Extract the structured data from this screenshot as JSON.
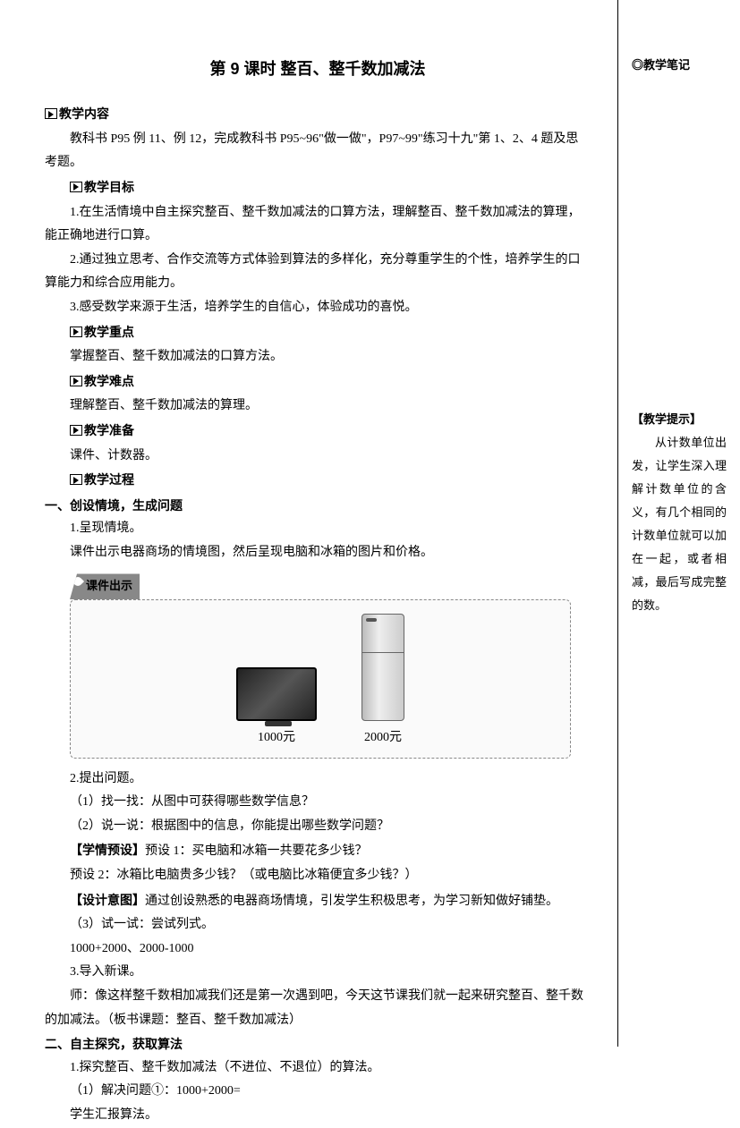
{
  "title": "第 9 课时  整百、整千数加减法",
  "sections": {
    "content_head": "教学内容",
    "content_body": "教科书 P95 例 11、例 12，完成教科书 P95~96\"做一做\"，P97~99\"练习十九\"第 1、2、4 题及思考题。",
    "goal_head": "教学目标",
    "goal_1": "1.在生活情境中自主探究整百、整千数加减法的口算方法，理解整百、整千数加减法的算理，能正确地进行口算。",
    "goal_2": "2.通过独立思考、合作交流等方式体验到算法的多样化，充分尊重学生的个性，培养学生的口算能力和综合应用能力。",
    "goal_3": "3.感受数学来源于生活，培养学生的自信心，体验成功的喜悦。",
    "key_head": "教学重点",
    "key_body": "掌握整百、整千数加减法的口算方法。",
    "difficulty_head": "教学难点",
    "difficulty_body": "理解整百、整千数加减法的算理。",
    "prep_head": "教学准备",
    "prep_body": "课件、计数器。",
    "process_head": "教学过程"
  },
  "part1": {
    "heading": "一、创设情境，生成问题",
    "p1": "1.呈现情境。",
    "p2": "课件出示电器商场的情境图，然后呈现电脑和冰箱的图片和价格。",
    "courseware_label": "课件出示",
    "tv_price": "1000元",
    "fridge_price": "2000元",
    "p3": "2.提出问题。",
    "p4": "（1）找一找：从图中可获得哪些数学信息？",
    "p5": "（2）说一说：根据图中的信息，你能提出哪些数学问题？",
    "pre_label": "【学情预设】",
    "pre1": "预设 1：买电脑和冰箱一共要花多少钱？",
    "pre2": "预设 2：冰箱比电脑贵多少钱？（或电脑比冰箱便宜多少钱？）",
    "intent_label": "【设计意图】",
    "intent_body": "通过创设熟悉的电器商场情境，引发学生积极思考，为学习新知做好铺垫。",
    "p6": "（3）试一试：尝试列式。",
    "p7": "1000+2000、2000-1000",
    "p8": "3.导入新课。",
    "p9": "师：像这样整千数相加减我们还是第一次遇到吧，今天这节课我们就一起来研究整百、整千数的加减法。（板书课题：整百、整千数加减法）"
  },
  "part2": {
    "heading": "二、自主探究，获取算法",
    "p1": "1.探究整百、整千数加减法（不进位、不退位）的算法。",
    "p2": "（1）解决问题①：1000+2000=",
    "p3": "学生汇报算法。"
  },
  "sidebar": {
    "notes_head": "◎教学笔记",
    "tip_head": "【教学提示】",
    "tip_body": "从计数单位出发，让学生深入理解计数单位的含义，有几个相同的计数单位就可以加在一起，或者相减，最后写成完整的数。"
  }
}
